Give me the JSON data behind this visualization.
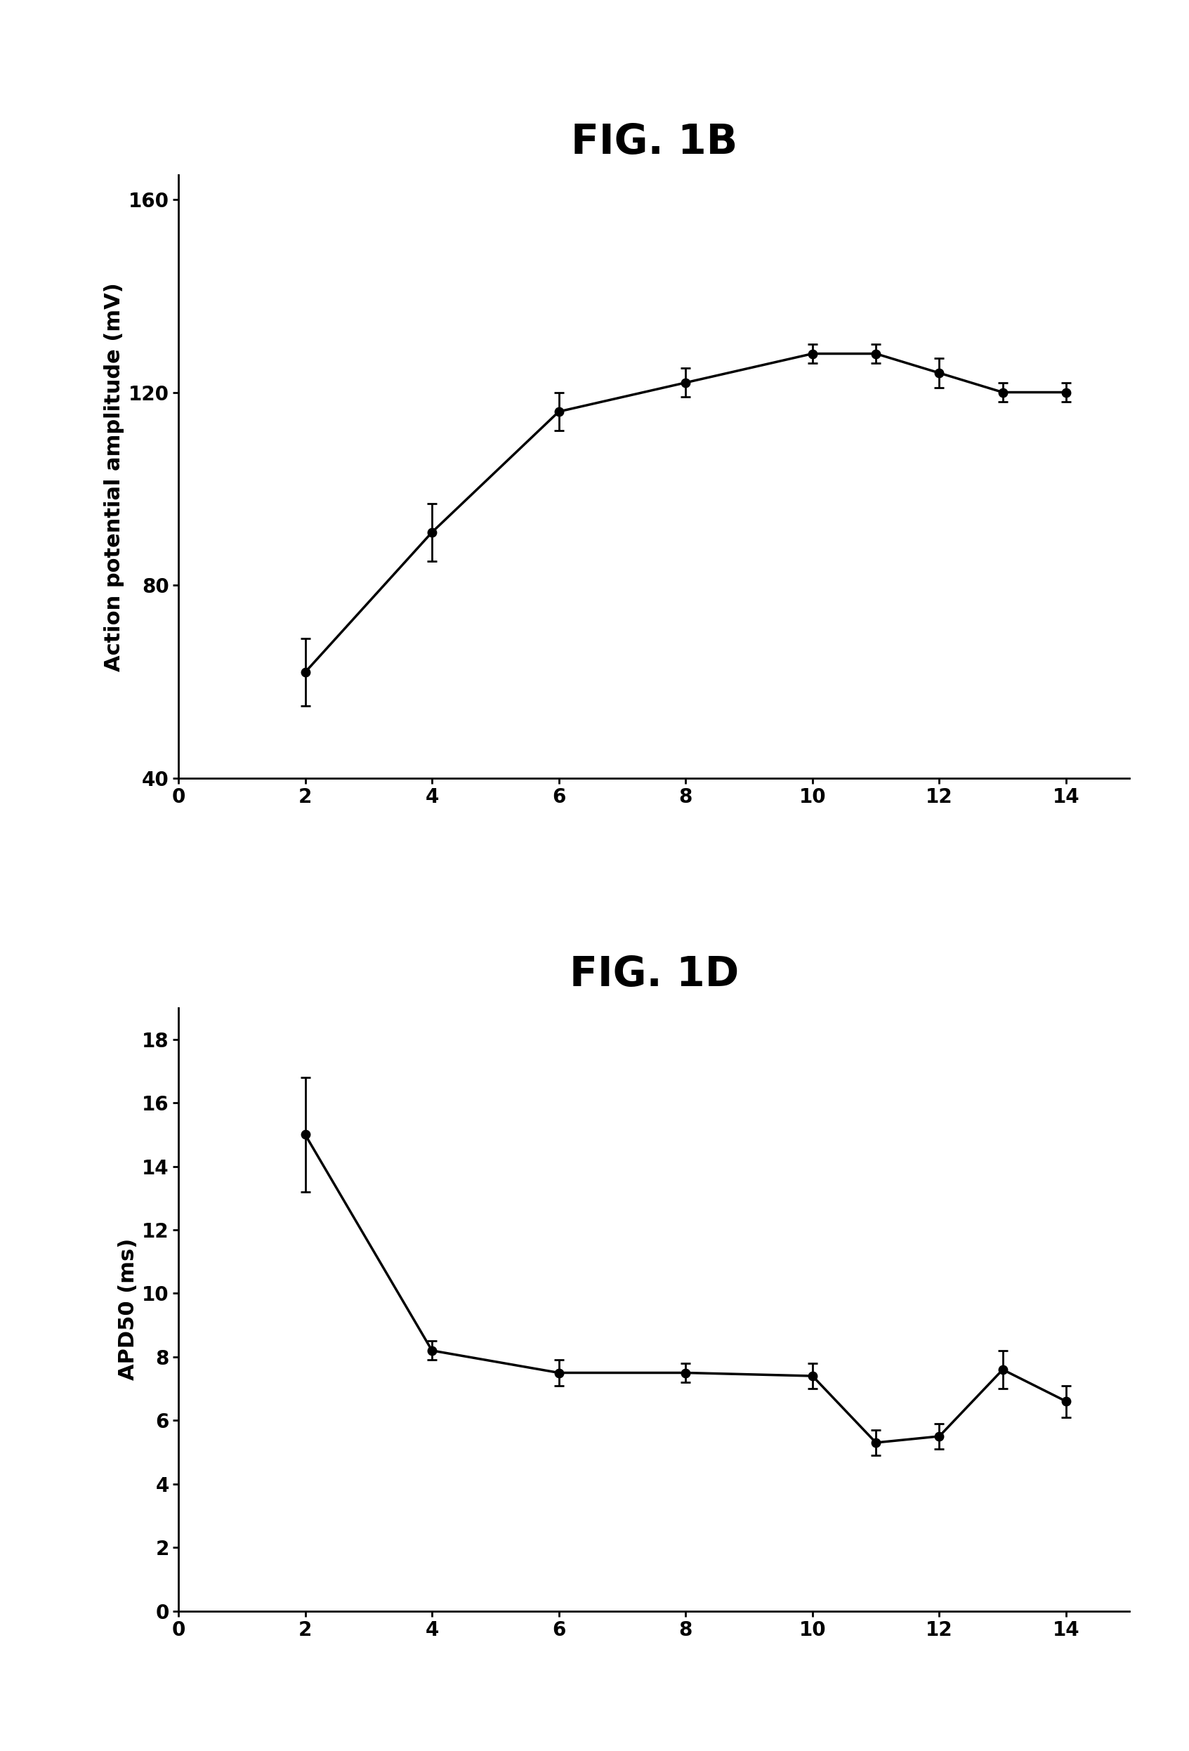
{
  "fig1b": {
    "title": "FIG. 1B",
    "x": [
      2,
      4,
      6,
      8,
      10,
      11,
      12,
      13,
      14
    ],
    "y": [
      62,
      91,
      116,
      122,
      128,
      128,
      124,
      120,
      120
    ],
    "yerr": [
      7,
      6,
      4,
      3,
      2,
      2,
      3,
      2,
      2
    ],
    "ylabel": "Action potential amplitude (mV)",
    "xlim": [
      0,
      15
    ],
    "ylim": [
      40,
      165
    ],
    "yticks": [
      40,
      80,
      120,
      160
    ],
    "xticks": [
      0,
      2,
      4,
      6,
      8,
      10,
      12,
      14
    ]
  },
  "fig1d": {
    "title": "FIG. 1D",
    "x": [
      2,
      4,
      6,
      8,
      10,
      11,
      12,
      13,
      14
    ],
    "y": [
      15.0,
      8.2,
      7.5,
      7.5,
      7.4,
      5.3,
      5.5,
      7.6,
      6.6
    ],
    "yerr": [
      1.8,
      0.3,
      0.4,
      0.3,
      0.4,
      0.4,
      0.4,
      0.6,
      0.5
    ],
    "ylabel": "APD50 (ms)",
    "xlim": [
      0,
      15
    ],
    "ylim": [
      0,
      19
    ],
    "yticks": [
      0,
      2,
      4,
      6,
      8,
      10,
      12,
      14,
      16,
      18
    ],
    "xticks": [
      0,
      2,
      4,
      6,
      8,
      10,
      12,
      14
    ]
  },
  "line_color": "#000000",
  "marker": "o",
  "markersize": 9,
  "capsize": 5,
  "linewidth": 2.5,
  "title_fontsize": 42,
  "label_fontsize": 22,
  "tick_fontsize": 20,
  "background_color": "#ffffff"
}
